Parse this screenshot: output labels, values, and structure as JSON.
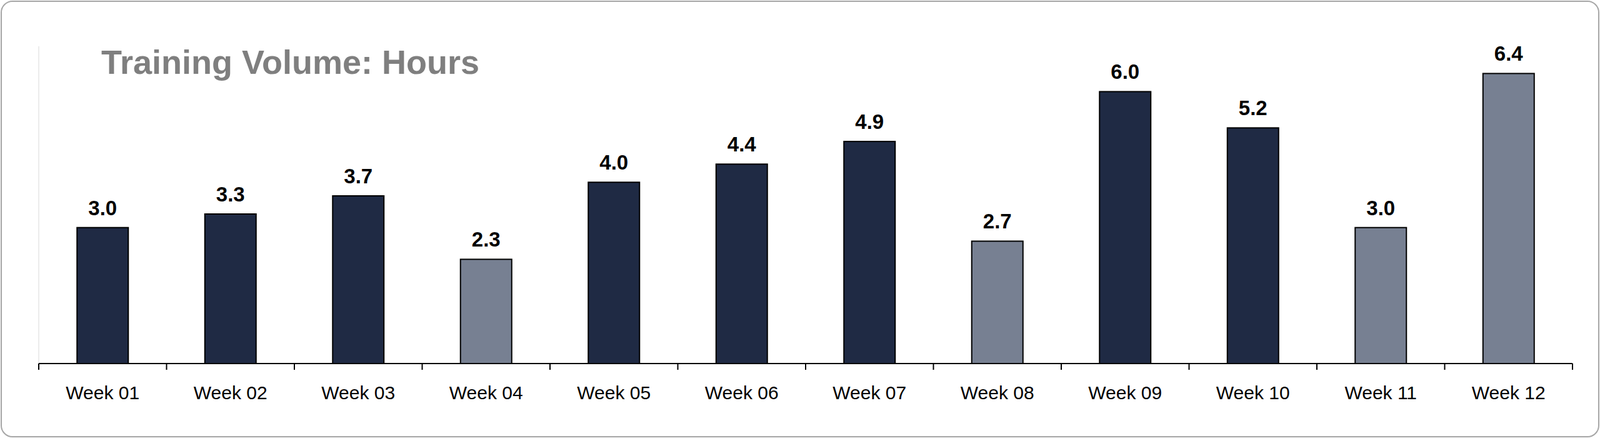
{
  "chart_data": {
    "type": "bar",
    "title": "Training Volume: Hours",
    "categories": [
      "Week 01",
      "Week 02",
      "Week 03",
      "Week 04",
      "Week 05",
      "Week 06",
      "Week 07",
      "Week 08",
      "Week 09",
      "Week 10",
      "Week 11",
      "Week 12"
    ],
    "values": [
      3.0,
      3.3,
      3.7,
      2.3,
      4.0,
      4.4,
      4.9,
      2.7,
      6.0,
      5.2,
      3.0,
      6.4
    ],
    "value_labels": [
      "3.0",
      "3.3",
      "3.7",
      "2.3",
      "4.0",
      "4.4",
      "4.9",
      "2.7",
      "6.0",
      "5.2",
      "3.0",
      "6.4"
    ],
    "colors": [
      "#1f2a44",
      "#1f2a44",
      "#1f2a44",
      "#778092",
      "#1f2a44",
      "#1f2a44",
      "#1f2a44",
      "#778092",
      "#1f2a44",
      "#1f2a44",
      "#778092",
      "#778092"
    ],
    "ylim": [
      0,
      7
    ],
    "grid": false,
    "data_labels": true,
    "tick_labels": "x"
  }
}
